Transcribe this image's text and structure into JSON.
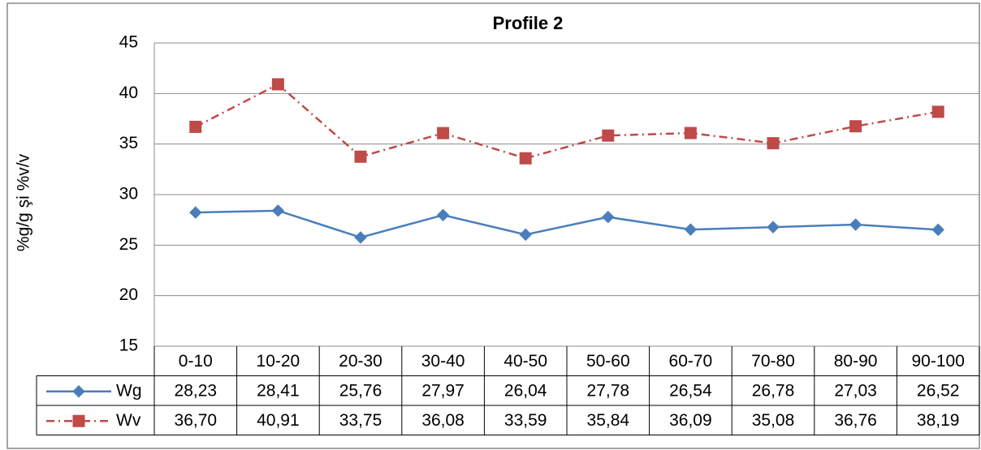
{
  "chart_data": {
    "type": "line",
    "title": "Profile 2",
    "y_label": "%g/g şi %v/v",
    "categories": [
      "0-10",
      "10-20",
      "20-30",
      "30-40",
      "40-50",
      "50-60",
      "60-70",
      "70-80",
      "80-90",
      "90-100"
    ],
    "series": [
      {
        "name": "Wg",
        "color": "#4a7ebb",
        "marker": "diamond",
        "line_style": "solid",
        "values": [
          28.23,
          28.41,
          25.76,
          27.97,
          26.04,
          27.78,
          26.54,
          26.78,
          27.03,
          26.52
        ],
        "value_labels": [
          "28,23",
          "28,41",
          "25,76",
          "27,97",
          "26,04",
          "27,78",
          "26,54",
          "26,78",
          "27,03",
          "26,52"
        ]
      },
      {
        "name": "Wv",
        "color": "#be4b48",
        "marker": "square",
        "line_style": "dashdot",
        "values": [
          36.7,
          40.91,
          33.75,
          36.08,
          33.59,
          35.84,
          36.09,
          35.08,
          36.76,
          38.19
        ],
        "value_labels": [
          "36,70",
          "40,91",
          "33,75",
          "36,08",
          "33,59",
          "35,84",
          "36,09",
          "35,08",
          "36,76",
          "38,19"
        ]
      }
    ],
    "ylim": [
      15,
      45
    ],
    "yticks": [
      15,
      20,
      25,
      30,
      35,
      40,
      45
    ],
    "grid": true
  }
}
